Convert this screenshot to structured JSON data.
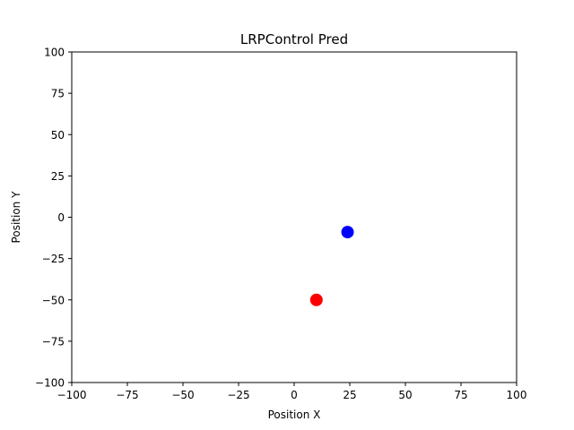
{
  "chart_data": {
    "type": "scatter",
    "title": "LRPControl Pred",
    "xlabel": "Position X",
    "ylabel": "Position Y",
    "xlim": [
      -100,
      100
    ],
    "ylim": [
      -100,
      100
    ],
    "xticks": [
      -100,
      -75,
      -50,
      -25,
      0,
      25,
      50,
      75,
      100
    ],
    "yticks": [
      -100,
      -75,
      -50,
      -25,
      0,
      25,
      50,
      75,
      100
    ],
    "grid": false,
    "points": [
      {
        "x": 24,
        "y": -9,
        "color": "#0000ff"
      },
      {
        "x": 10,
        "y": -50,
        "color": "#ff0000"
      }
    ]
  }
}
